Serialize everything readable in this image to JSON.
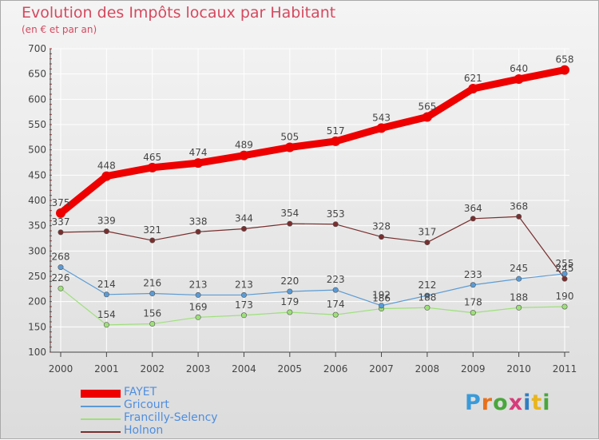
{
  "title": "Evolution des Impôts locaux par Habitant",
  "subtitle": "(en € et par an)",
  "logo": {
    "text": "Proxiti",
    "colors": [
      "#3a9ad9",
      "#e8711c",
      "#4aa63c",
      "#d83b7a",
      "#2f7ec2",
      "#e8b51c",
      "#4aa63c"
    ]
  },
  "chart_data": {
    "type": "line",
    "x": [
      "2000",
      "2001",
      "2002",
      "2003",
      "2004",
      "2005",
      "2006",
      "2007",
      "2008",
      "2009",
      "2010",
      "2011"
    ],
    "ylim": [
      100,
      700
    ],
    "yticks": [
      "100",
      "150",
      "200",
      "250",
      "300",
      "350",
      "400",
      "450",
      "500",
      "550",
      "600",
      "650",
      "700"
    ],
    "grid": true,
    "legend_position": "bottom-left",
    "series": [
      {
        "name": "FAYET",
        "color": "#ee0000",
        "values": [
          375,
          448,
          465,
          474,
          489,
          505,
          517,
          543,
          565,
          621,
          640,
          658
        ],
        "labels": [
          "375",
          "448",
          "465",
          "474",
          "489",
          "505",
          "517",
          "543",
          "565",
          "621",
          "640",
          "658"
        ]
      },
      {
        "name": "Gricourt",
        "color": "#5b9bd5",
        "values": [
          268,
          214,
          216,
          213,
          213,
          220,
          223,
          192,
          212,
          233,
          245,
          255
        ],
        "labels": [
          "268",
          "214",
          "216",
          "213",
          "213",
          "220",
          "223",
          "192",
          "212",
          "233",
          "245",
          "255"
        ]
      },
      {
        "name": "Francilly-Selency",
        "color": "#9ee07a",
        "values": [
          226,
          154,
          156,
          169,
          173,
          179,
          174,
          186,
          188,
          178,
          188,
          190
        ],
        "labels": [
          "226",
          "154",
          "156",
          "169",
          "173",
          "179",
          "174",
          "186",
          "188",
          "178",
          "188",
          "190"
        ]
      },
      {
        "name": "Holnon",
        "color": "#7a2e2e",
        "values": [
          337,
          339,
          321,
          338,
          344,
          354,
          353,
          328,
          317,
          364,
          368,
          245
        ],
        "labels": [
          "337",
          "339",
          "321",
          "338",
          "344",
          "354",
          "353",
          "328",
          "317",
          "364",
          "368",
          "245"
        ]
      }
    ]
  }
}
